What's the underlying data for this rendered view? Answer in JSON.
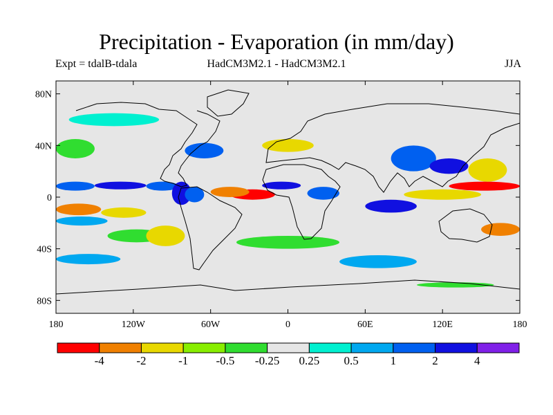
{
  "chart_data": {
    "type": "heatmap",
    "title": "Precipitation - Evaporation (in mm/day)",
    "subtitle_left": "Expt = tdalB-tdala",
    "subtitle_center": "HadCM3M2.1 - HadCM3M2.1",
    "subtitle_right": "JJA",
    "x_range": [
      -180,
      180
    ],
    "y_range": [
      -90,
      90
    ],
    "x_ticks": [
      {
        "value": -180,
        "label": "180"
      },
      {
        "value": -120,
        "label": "120W"
      },
      {
        "value": -60,
        "label": "60W"
      },
      {
        "value": 0,
        "label": "0"
      },
      {
        "value": 60,
        "label": "60E"
      },
      {
        "value": 120,
        "label": "120E"
      },
      {
        "value": 180,
        "label": "180"
      }
    ],
    "y_ticks": [
      {
        "value": 80,
        "label": "80N"
      },
      {
        "value": 40,
        "label": "40N"
      },
      {
        "value": 0,
        "label": "0"
      },
      {
        "value": -40,
        "label": "40S"
      },
      {
        "value": -80,
        "label": "80S"
      }
    ],
    "colorbar": {
      "colors": [
        "#ff0000",
        "#f08000",
        "#e8d800",
        "#88ee00",
        "#30dd30",
        "#e6e6e6",
        "#00f0d0",
        "#00a8f0",
        "#0060f0",
        "#1010e0",
        "#8020e8"
      ],
      "labels": [
        "-4",
        "-2",
        "-1",
        "-0.5",
        "-0.25",
        "0.25",
        "0.5",
        "1",
        "2",
        "4"
      ]
    },
    "regions": [
      {
        "lon": [
          -180,
          -150
        ],
        "lat": [
          5,
          12
        ],
        "category": 8
      },
      {
        "lon": [
          -150,
          -110
        ],
        "lat": [
          6,
          12
        ],
        "category": 9
      },
      {
        "lon": [
          -110,
          -85
        ],
        "lat": [
          5,
          12
        ],
        "category": 8
      },
      {
        "lon": [
          -90,
          -75
        ],
        "lat": [
          -6,
          12
        ],
        "category": 9
      },
      {
        "lon": [
          -80,
          -65
        ],
        "lat": [
          -4,
          8
        ],
        "category": 8
      },
      {
        "lon": [
          -45,
          -10
        ],
        "lat": [
          -2,
          6
        ],
        "category": 0
      },
      {
        "lon": [
          -60,
          -30
        ],
        "lat": [
          0,
          8
        ],
        "category": 1
      },
      {
        "lon": [
          -20,
          10
        ],
        "lat": [
          6,
          12
        ],
        "category": 9
      },
      {
        "lon": [
          15,
          40
        ],
        "lat": [
          -2,
          8
        ],
        "category": 8
      },
      {
        "lon": [
          -180,
          -145
        ],
        "lat": [
          -14,
          -5
        ],
        "category": 1
      },
      {
        "lon": [
          -145,
          -110
        ],
        "lat": [
          -16,
          -8
        ],
        "category": 2
      },
      {
        "lon": [
          -140,
          -95
        ],
        "lat": [
          -35,
          -25
        ],
        "category": 4
      },
      {
        "lon": [
          -110,
          -80
        ],
        "lat": [
          -38,
          -22
        ],
        "category": 2
      },
      {
        "lon": [
          -180,
          -140
        ],
        "lat": [
          -22,
          -15
        ],
        "category": 7
      },
      {
        "lon": [
          80,
          115
        ],
        "lat": [
          20,
          40
        ],
        "category": 8
      },
      {
        "lon": [
          110,
          140
        ],
        "lat": [
          18,
          30
        ],
        "category": 9
      },
      {
        "lon": [
          125,
          180
        ],
        "lat": [
          5,
          12
        ],
        "category": 0
      },
      {
        "lon": [
          140,
          170
        ],
        "lat": [
          12,
          30
        ],
        "category": 2
      },
      {
        "lon": [
          90,
          150
        ],
        "lat": [
          -2,
          6
        ],
        "category": 2
      },
      {
        "lon": [
          60,
          100
        ],
        "lat": [
          -12,
          -2
        ],
        "category": 9
      },
      {
        "lon": [
          -180,
          -150
        ],
        "lat": [
          30,
          45
        ],
        "category": 4
      },
      {
        "lon": [
          -80,
          -50
        ],
        "lat": [
          30,
          42
        ],
        "category": 8
      },
      {
        "lon": [
          -170,
          -100
        ],
        "lat": [
          55,
          65
        ],
        "category": 6
      },
      {
        "lon": [
          -40,
          40
        ],
        "lat": [
          -40,
          -30
        ],
        "category": 4
      },
      {
        "lon": [
          40,
          100
        ],
        "lat": [
          -55,
          -45
        ],
        "category": 7
      },
      {
        "lon": [
          -180,
          -130
        ],
        "lat": [
          -52,
          -44
        ],
        "category": 7
      },
      {
        "lon": [
          100,
          160
        ],
        "lat": [
          -70,
          -66
        ],
        "category": 4
      },
      {
        "lon": [
          -20,
          20
        ],
        "lat": [
          35,
          45
        ],
        "category": 2
      },
      {
        "lon": [
          150,
          180
        ],
        "lat": [
          -30,
          -20
        ],
        "category": 1
      }
    ]
  }
}
